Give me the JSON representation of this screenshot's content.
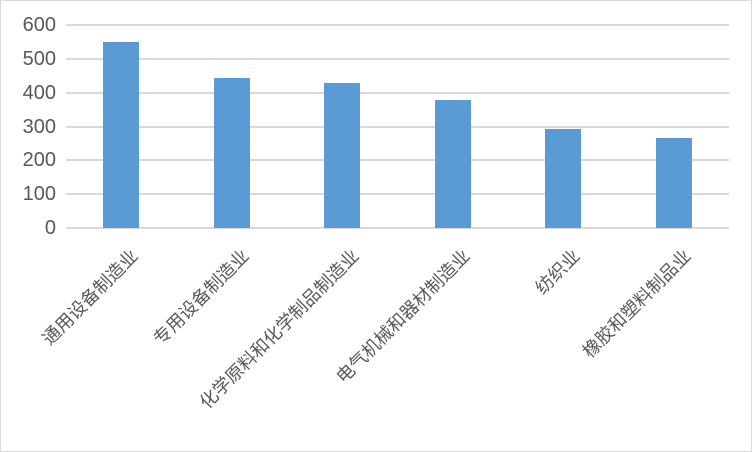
{
  "chart_data": {
    "type": "bar",
    "title": "",
    "xlabel": "",
    "ylabel": "",
    "categories": [
      "通用设备制造业",
      "专用设备制造业",
      "化学原料和化学制品制造业",
      "电气机械和器材制造业",
      "纺织业",
      "橡胶和塑料制品业"
    ],
    "values": [
      550,
      442,
      430,
      378,
      292,
      266
    ],
    "ylim": [
      0,
      600
    ],
    "yticks": [
      0,
      100,
      200,
      300,
      400,
      500,
      600
    ],
    "grid": "horizontal-on",
    "legend": "none",
    "x_tick_rotation_deg": 45,
    "colors": {
      "bar": "#5B9BD5",
      "gridline": "#D9D9D9",
      "axis_line": "#D9D9D9",
      "tick_text": "#595959",
      "chart_border": "#D9D9D9",
      "background": "#FFFFFF"
    }
  }
}
